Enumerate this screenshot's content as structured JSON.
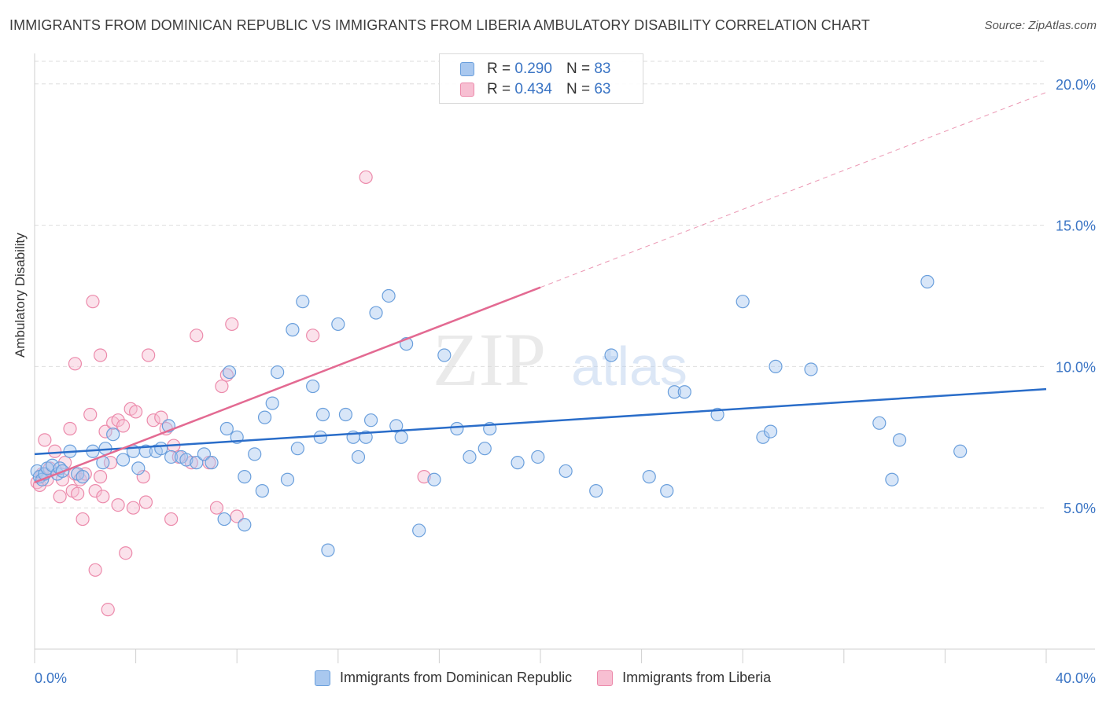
{
  "title": "IMMIGRANTS FROM DOMINICAN REPUBLIC VS IMMIGRANTS FROM LIBERIA AMBULATORY DISABILITY CORRELATION CHART",
  "source": "Source: ZipAtlas.com",
  "watermark": {
    "zip": "ZIP",
    "atlas": "atlas"
  },
  "legend_top": [
    {
      "r_label": "R = ",
      "r_value": "0.290",
      "n_label": "N = ",
      "n_value": "83"
    },
    {
      "r_label": "R = ",
      "r_value": "0.434",
      "n_label": "N = ",
      "n_value": "63"
    }
  ],
  "legend_bottom": [
    {
      "label": "Immigrants from Dominican Republic"
    },
    {
      "label": "Immigrants from Liberia"
    }
  ],
  "chart_data": {
    "type": "scatter",
    "title": "IMMIGRANTS FROM DOMINICAN REPUBLIC VS IMMIGRANTS FROM LIBERIA AMBULATORY DISABILITY CORRELATION CHART",
    "xlabel": "",
    "ylabel": "Ambulatory Disability",
    "xlim": [
      0,
      40
    ],
    "ylim": [
      0,
      20.8
    ],
    "x_tick_labels": [
      "0.0%",
      "40.0%"
    ],
    "y_ticks": [
      5,
      10,
      15,
      20
    ],
    "y_tick_labels": [
      "5.0%",
      "10.0%",
      "15.0%",
      "20.0%"
    ],
    "grid": true,
    "colors": {
      "blue_fill": "#a9c8ef",
      "blue_stroke": "#6a9fdc",
      "blue_line": "#2a6dc9",
      "pink_fill": "#f7bfd2",
      "pink_stroke": "#ec8aab",
      "pink_line": "#e36a92",
      "tick_label": "#3a74c4"
    },
    "series": [
      {
        "name": "Immigrants from Dominican Republic",
        "trend": {
          "x": [
            0,
            40
          ],
          "y": [
            6.9,
            9.2
          ]
        },
        "points": [
          [
            0.1,
            6.3
          ],
          [
            0.2,
            6.1
          ],
          [
            0.3,
            6.0
          ],
          [
            0.4,
            6.2
          ],
          [
            0.5,
            6.4
          ],
          [
            0.7,
            6.5
          ],
          [
            0.9,
            6.2
          ],
          [
            1.0,
            6.4
          ],
          [
            1.1,
            6.3
          ],
          [
            1.4,
            7.0
          ],
          [
            1.7,
            6.2
          ],
          [
            1.9,
            6.1
          ],
          [
            2.3,
            7.0
          ],
          [
            2.8,
            7.1
          ],
          [
            2.7,
            6.6
          ],
          [
            3.1,
            7.6
          ],
          [
            3.5,
            6.7
          ],
          [
            3.9,
            7.0
          ],
          [
            4.1,
            6.4
          ],
          [
            4.4,
            7.0
          ],
          [
            4.8,
            7.0
          ],
          [
            5.0,
            7.1
          ],
          [
            5.3,
            7.9
          ],
          [
            5.4,
            6.8
          ],
          [
            5.8,
            6.8
          ],
          [
            6.0,
            6.7
          ],
          [
            6.4,
            6.6
          ],
          [
            6.7,
            6.9
          ],
          [
            7.0,
            6.6
          ],
          [
            7.6,
            7.8
          ],
          [
            7.5,
            4.6
          ],
          [
            7.7,
            9.8
          ],
          [
            8.0,
            7.5
          ],
          [
            8.3,
            4.4
          ],
          [
            8.3,
            6.1
          ],
          [
            8.7,
            6.9
          ],
          [
            9.0,
            5.6
          ],
          [
            9.1,
            8.2
          ],
          [
            9.4,
            8.7
          ],
          [
            9.6,
            9.8
          ],
          [
            10.0,
            6.0
          ],
          [
            10.2,
            11.3
          ],
          [
            10.4,
            7.1
          ],
          [
            10.6,
            12.3
          ],
          [
            11.0,
            9.3
          ],
          [
            11.3,
            7.5
          ],
          [
            11.4,
            8.3
          ],
          [
            11.6,
            3.5
          ],
          [
            12.0,
            11.5
          ],
          [
            12.3,
            8.3
          ],
          [
            12.6,
            7.5
          ],
          [
            12.8,
            6.8
          ],
          [
            13.1,
            7.5
          ],
          [
            13.3,
            8.1
          ],
          [
            13.5,
            11.9
          ],
          [
            14.0,
            12.5
          ],
          [
            14.3,
            7.9
          ],
          [
            14.5,
            7.5
          ],
          [
            14.7,
            10.8
          ],
          [
            15.2,
            4.2
          ],
          [
            15.8,
            6.0
          ],
          [
            16.2,
            10.4
          ],
          [
            16.7,
            7.8
          ],
          [
            17.2,
            6.8
          ],
          [
            17.8,
            7.1
          ],
          [
            18.0,
            7.8
          ],
          [
            19.1,
            6.6
          ],
          [
            19.9,
            6.8
          ],
          [
            21.0,
            6.3
          ],
          [
            22.2,
            5.6
          ],
          [
            22.8,
            10.4
          ],
          [
            24.3,
            6.1
          ],
          [
            25.0,
            5.6
          ],
          [
            25.3,
            9.1
          ],
          [
            25.7,
            9.1
          ],
          [
            27.0,
            8.3
          ],
          [
            28.0,
            12.3
          ],
          [
            28.8,
            7.5
          ],
          [
            29.1,
            7.7
          ],
          [
            29.3,
            10.0
          ],
          [
            30.7,
            9.9
          ],
          [
            33.4,
            8.0
          ],
          [
            33.9,
            6.0
          ],
          [
            34.2,
            7.4
          ],
          [
            35.3,
            13.0
          ],
          [
            36.6,
            7.0
          ]
        ]
      },
      {
        "name": "Immigrants from Liberia",
        "trend": {
          "x": [
            0,
            20
          ],
          "y": [
            5.9,
            12.8
          ],
          "dash_to": {
            "x": 40,
            "y": 19.7
          }
        },
        "points": [
          [
            0.1,
            5.9
          ],
          [
            0.2,
            5.8
          ],
          [
            0.3,
            6.2
          ],
          [
            0.4,
            7.4
          ],
          [
            0.5,
            6.0
          ],
          [
            0.6,
            6.4
          ],
          [
            0.8,
            7.0
          ],
          [
            1.0,
            5.4
          ],
          [
            1.1,
            6.0
          ],
          [
            1.2,
            6.6
          ],
          [
            1.4,
            7.8
          ],
          [
            1.5,
            5.6
          ],
          [
            1.6,
            6.2
          ],
          [
            1.6,
            10.1
          ],
          [
            1.7,
            5.5
          ],
          [
            1.8,
            6.0
          ],
          [
            1.9,
            4.6
          ],
          [
            2.0,
            6.2
          ],
          [
            2.2,
            8.3
          ],
          [
            2.3,
            12.3
          ],
          [
            2.4,
            2.8
          ],
          [
            2.4,
            5.6
          ],
          [
            2.6,
            10.4
          ],
          [
            2.6,
            6.1
          ],
          [
            2.7,
            5.4
          ],
          [
            2.8,
            7.7
          ],
          [
            2.9,
            1.4
          ],
          [
            3.0,
            6.6
          ],
          [
            3.1,
            8.0
          ],
          [
            3.3,
            5.1
          ],
          [
            3.3,
            8.1
          ],
          [
            3.5,
            7.9
          ],
          [
            3.6,
            3.4
          ],
          [
            3.8,
            8.5
          ],
          [
            3.9,
            5.0
          ],
          [
            4.0,
            8.4
          ],
          [
            4.3,
            6.1
          ],
          [
            4.4,
            5.2
          ],
          [
            4.5,
            10.4
          ],
          [
            4.7,
            8.1
          ],
          [
            5.0,
            8.2
          ],
          [
            5.2,
            7.8
          ],
          [
            5.4,
            4.6
          ],
          [
            5.5,
            7.2
          ],
          [
            5.7,
            6.8
          ],
          [
            6.2,
            6.6
          ],
          [
            6.4,
            11.1
          ],
          [
            6.9,
            6.6
          ],
          [
            7.2,
            5.0
          ],
          [
            7.4,
            9.3
          ],
          [
            7.6,
            9.7
          ],
          [
            7.8,
            11.5
          ],
          [
            8.0,
            4.7
          ],
          [
            11.0,
            11.1
          ],
          [
            13.1,
            16.7
          ],
          [
            15.4,
            6.1
          ]
        ]
      }
    ]
  }
}
